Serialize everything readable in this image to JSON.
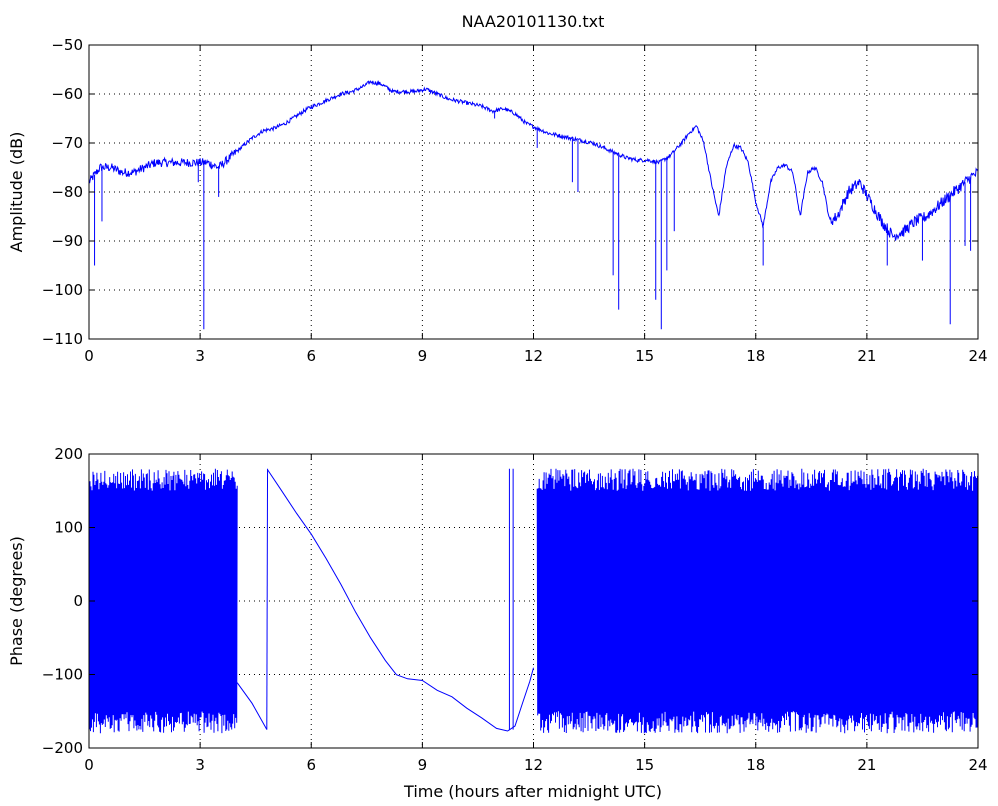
{
  "chart_data": [
    {
      "type": "line",
      "title": "NAA20101130.txt",
      "xlabel": "",
      "ylabel": "Amplitude (dB)",
      "xlim": [
        0,
        24
      ],
      "ylim": [
        -110,
        -50
      ],
      "xticks": [
        0,
        3,
        6,
        9,
        12,
        15,
        18,
        21,
        24
      ],
      "yticks": [
        -50,
        -60,
        -70,
        -80,
        -90,
        -100,
        -110
      ],
      "grid": true,
      "line_color": "#0000ff",
      "series": [
        {
          "x": [
            0,
            0.1,
            0.3,
            0.6,
            0.9,
            1.2,
            1.5,
            1.8,
            2.1,
            2.4,
            2.7,
            3.0,
            3.2,
            3.5,
            3.8,
            4.1,
            4.4,
            4.7,
            5.0,
            5.3,
            5.6,
            5.9,
            6.2,
            6.5,
            6.8,
            7.1,
            7.4,
            7.6,
            7.9,
            8.2,
            8.5,
            8.8,
            9.1,
            9.4,
            9.7,
            10.0,
            10.3,
            10.6,
            10.9,
            11.2,
            11.5,
            11.8,
            12.1,
            12.4,
            12.7,
            13.0,
            13.3,
            13.6,
            13.9,
            14.2,
            14.5,
            14.8,
            15.1,
            15.4,
            15.7,
            16.0,
            16.2,
            16.4,
            16.6,
            16.8,
            17.0,
            17.2,
            17.4,
            17.6,
            17.8,
            18.0,
            18.2,
            18.4,
            18.6,
            18.8,
            19.0,
            19.2,
            19.4,
            19.6,
            19.8,
            20.0,
            20.2,
            20.5,
            20.8,
            21.1,
            21.4,
            21.7,
            22.0,
            22.3,
            22.6,
            22.9,
            23.2,
            23.5,
            23.8,
            24.0
          ],
          "y": [
            -78,
            -77,
            -75,
            -75,
            -76,
            -76,
            -75,
            -74,
            -74,
            -74,
            -74,
            -74,
            -74,
            -75,
            -73,
            -71,
            -69,
            -67.5,
            -67,
            -66,
            -64.5,
            -63,
            -62,
            -61,
            -60,
            -59.5,
            -58.5,
            -57.5,
            -58,
            -59.5,
            -59.5,
            -59.5,
            -59,
            -60,
            -61,
            -61.5,
            -62,
            -62.5,
            -63.5,
            -63,
            -64,
            -66,
            -67,
            -68,
            -68.5,
            -69,
            -69.5,
            -70,
            -71,
            -72,
            -73,
            -73.5,
            -73.5,
            -74,
            -72.5,
            -70,
            -68,
            -66.5,
            -70,
            -78,
            -85,
            -75,
            -70.5,
            -71,
            -74,
            -82,
            -87,
            -78,
            -75,
            -74.5,
            -76,
            -85,
            -76,
            -75,
            -78,
            -86,
            -85,
            -80,
            -78,
            -82,
            -86,
            -89,
            -88,
            -86,
            -85,
            -83,
            -81,
            -79,
            -77,
            -76
          ],
          "spikes": [
            {
              "x": 0.15,
              "y": -95
            },
            {
              "x": 0.35,
              "y": -86
            },
            {
              "x": 2.95,
              "y": -78
            },
            {
              "x": 3.1,
              "y": -108
            },
            {
              "x": 3.5,
              "y": -81
            },
            {
              "x": 10.95,
              "y": -65
            },
            {
              "x": 12.1,
              "y": -71
            },
            {
              "x": 13.05,
              "y": -78
            },
            {
              "x": 13.2,
              "y": -80
            },
            {
              "x": 14.15,
              "y": -97
            },
            {
              "x": 14.3,
              "y": -104
            },
            {
              "x": 15.3,
              "y": -102
            },
            {
              "x": 15.45,
              "y": -108
            },
            {
              "x": 15.6,
              "y": -96
            },
            {
              "x": 15.8,
              "y": -88
            },
            {
              "x": 18.2,
              "y": -95
            },
            {
              "x": 21.55,
              "y": -95
            },
            {
              "x": 22.5,
              "y": -94
            },
            {
              "x": 23.25,
              "y": -107
            },
            {
              "x": 23.65,
              "y": -91
            },
            {
              "x": 23.8,
              "y": -92
            }
          ]
        }
      ]
    },
    {
      "type": "line",
      "title": "",
      "xlabel": "Time (hours after midnight UTC)",
      "ylabel": "Phase (degrees)",
      "xlim": [
        0,
        24
      ],
      "ylim": [
        -200,
        200
      ],
      "xticks": [
        0,
        3,
        6,
        9,
        12,
        15,
        18,
        21,
        24
      ],
      "yticks": [
        200,
        100,
        0,
        -100,
        -200
      ],
      "grid": true,
      "line_color": "#0000ff",
      "wrapped_segments": [
        [
          0,
          4.0
        ],
        [
          12.1,
          24
        ]
      ],
      "series": [
        {
          "x": [
            4.0,
            4.4,
            4.8,
            4.82,
            5.2,
            5.6,
            6.0,
            6.4,
            6.8,
            7.2,
            7.6,
            8.0,
            8.3,
            8.6,
            9.0,
            9.4,
            9.8,
            10.2,
            10.6,
            11.0,
            11.3,
            11.5,
            11.7,
            11.9,
            12.0
          ],
          "y": [
            -110,
            -140,
            -175,
            180,
            150,
            120,
            90,
            57,
            22,
            -15,
            -50,
            -80,
            -100,
            -105,
            -108,
            -120,
            -130,
            -145,
            -160,
            -172,
            -178,
            -170,
            -140,
            -110,
            -90
          ]
        }
      ]
    }
  ],
  "axis_ticks": {
    "x": [
      "0",
      "3",
      "6",
      "9",
      "12",
      "15",
      "18",
      "21",
      "24"
    ],
    "amp_y": [
      "−50",
      "−60",
      "−70",
      "−80",
      "−90",
      "−100",
      "−110"
    ],
    "phase_y": [
      "200",
      "100",
      "0",
      "−100",
      "−200"
    ]
  }
}
